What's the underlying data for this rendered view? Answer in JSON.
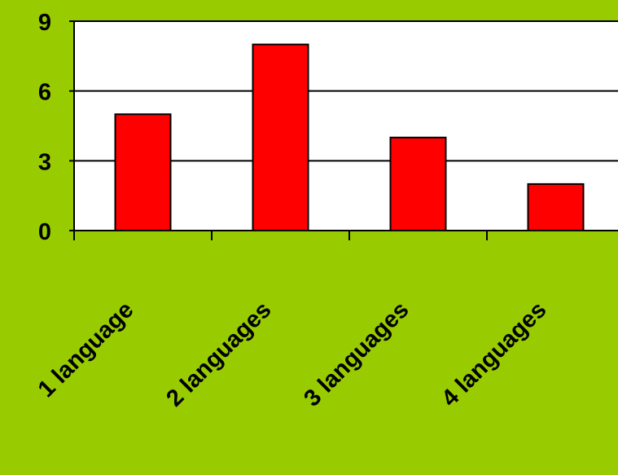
{
  "chart_data": {
    "type": "bar",
    "categories": [
      "1 language",
      "2 languages",
      "3 languages",
      "4 languages"
    ],
    "values": [
      5,
      8,
      4,
      2
    ],
    "title": "",
    "xlabel": "",
    "ylabel": "",
    "ylim": [
      0,
      9
    ],
    "yticks": [
      "0",
      "3",
      "6",
      "9"
    ],
    "grid": true,
    "legend": "none",
    "colors": {
      "background": "#99cc00",
      "plot_area": "#ffffff",
      "bar_fill": "#ff0000",
      "bar_stroke": "#000000",
      "axis": "#000000"
    }
  }
}
